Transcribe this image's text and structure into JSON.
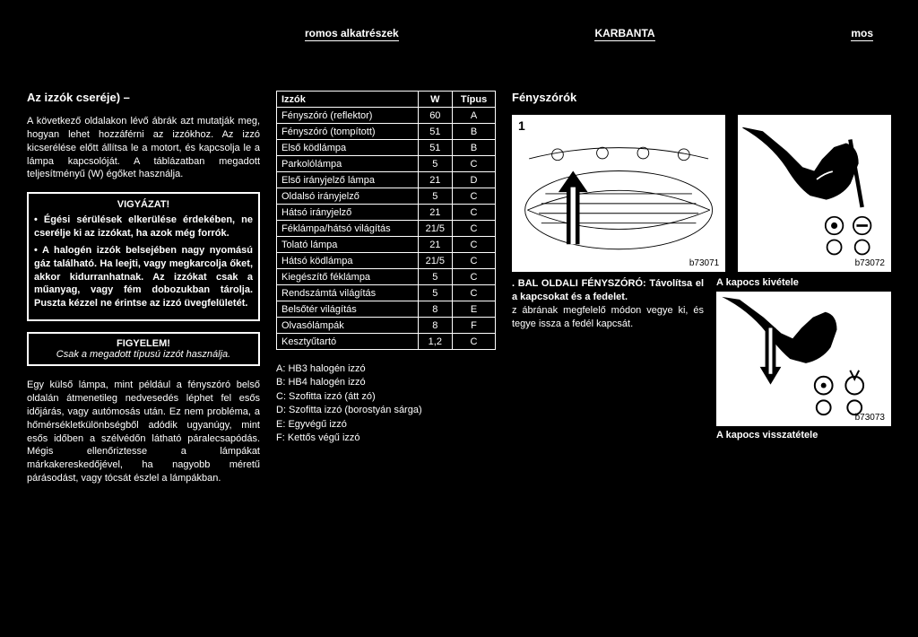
{
  "header": {
    "left": "romos alkatrészek",
    "mid": "KARBANTA",
    "right": "mos"
  },
  "leftCol": {
    "title": "Az izzók cseréje) –",
    "intro": "A következő oldalakon lévő ábrák azt mutatják meg, hogyan lehet hozzáférni az izzókhoz. Az izzó kicserélése előtt állítsa le a motort, és kapcsolja le a lámpa kapcsolóját. A táblázatban megadott teljesítményű (W) égőket használja.",
    "warnTitle": "VIGYÁZAT!",
    "warn1": "Égési sérülések elkerülése érdekében, ne cserélje ki az izzókat, ha azok még forrók.",
    "warn2": "A halogén izzók belsejében nagy nyomású gáz található. Ha leejti, vagy megkarcolja őket, akkor kidurranhatnak. Az izzókat csak a műanyag, vagy fém dobozukban tárolja. Puszta kézzel ne érintse az izzó üvegfelületét.",
    "noticeTitle": "FIGYELEM!",
    "noticeText": "Csak a megadott típusú izzót használja.",
    "bottomPara": "Egy külső lámpa, mint például a fényszóró belső oldalán átmenetileg nedvesedés léphet fel esős időjárás, vagy autómosás után. Ez nem probléma, a hőmérsékletkülönbségből adódik ugyanúgy, mint esős időben a szélvédőn látható páralecsapódás. Mégis ellenőriztesse a lámpákat márkakereskedőjével, ha nagyobb méretű párásodást, vagy tócsát észlel a lámpákban."
  },
  "table": {
    "head": [
      "Izzók",
      "W",
      "Típus"
    ],
    "rows": [
      [
        "Fényszóró (reflektor)",
        "60",
        "A"
      ],
      [
        "Fényszóró (tompított)",
        "51",
        "B"
      ],
      [
        "Első ködlámpa",
        "51",
        "B"
      ],
      [
        "Parkolólámpa",
        "5",
        "C"
      ],
      [
        "Első irányjelző lámpa",
        "21",
        "D"
      ],
      [
        "Oldalsó irányjelző",
        "5",
        "C"
      ],
      [
        "Hátsó irányjelző",
        "21",
        "C"
      ],
      [
        "Féklámpa/hátsó világítás",
        "21/5",
        "C"
      ],
      [
        "Tolató lámpa",
        "21",
        "C"
      ],
      [
        "Hátsó ködlámpa",
        "21/5",
        "C"
      ],
      [
        "Kiegészítő féklámpa",
        "5",
        "C"
      ],
      [
        "Rendszámtá    világítás",
        "5",
        "C"
      ],
      [
        "Belsőtér világítás",
        "8",
        "E"
      ],
      [
        "Olvasólámpák",
        "8",
        "F"
      ],
      [
        "Kesztyűtartó",
        "1,2",
        "C"
      ]
    ]
  },
  "legend": {
    "a": "A:  HB3 halogén izzó",
    "b": "B:  HB4 halogén izzó",
    "c": "C:  Szofitta izzó (átt   zó)",
    "d": "D:  Szofitta izzó (borostyán sárga)",
    "e": "E:  Egyvégű izzó",
    "f": "F:  Kettős végű izzó"
  },
  "rightCol": {
    "title": "Fényszórók",
    "figNum": "1",
    "figLabel1": "b73071",
    "figLabel2": "b73072",
    "figLabel3": "b73073",
    "step1Bold": ". BAL OLDALI FÉNYSZÓRÓ: Távolítsa el a kapcsokat és a fedelet.",
    "step1Rest": "z ábrának megfelelő módon vegye ki, és tegye issza a fedél kapcsát.",
    "cap2": "A kapocs kivétele",
    "cap3": "A kapocs visszatétele"
  }
}
